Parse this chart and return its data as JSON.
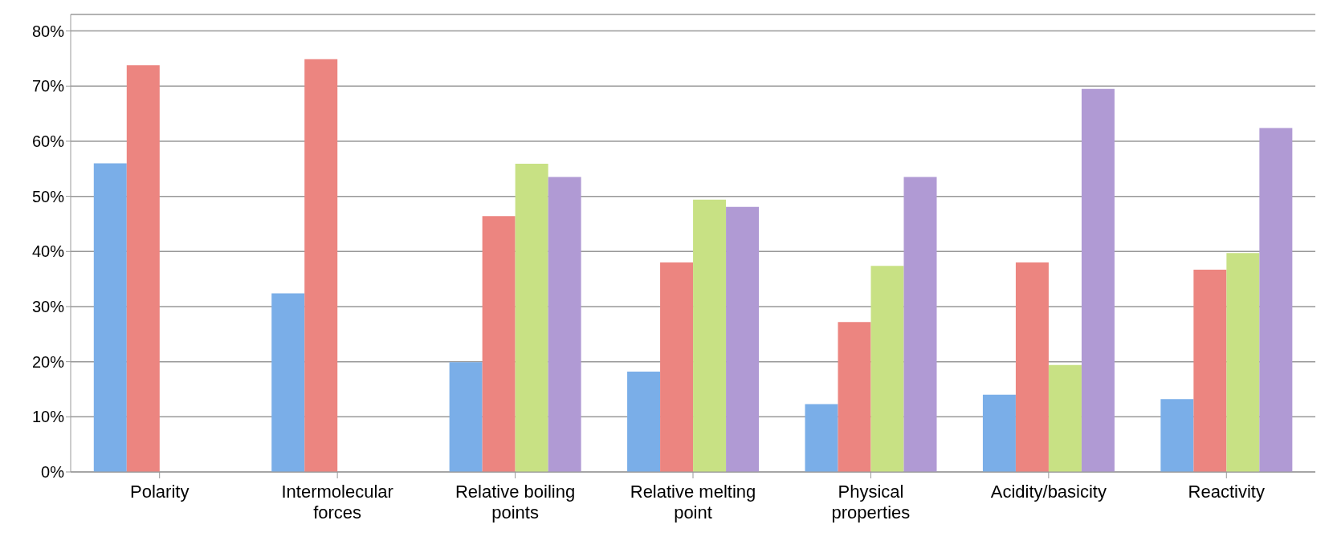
{
  "chart_data": {
    "type": "bar",
    "categories": [
      "Polarity",
      "Intermolecular forces",
      "Relative boiling points",
      "Relative melting point",
      "Physical properties",
      "Acidity/basicity",
      "Reactivity"
    ],
    "series": [
      {
        "color": "#7aaee8",
        "values": [
          56,
          32.4,
          19.9,
          18.2,
          12.3,
          14,
          13.2
        ]
      },
      {
        "color": "#ec8580",
        "values": [
          73.8,
          74.9,
          46.4,
          38,
          27.2,
          38,
          36.7
        ]
      },
      {
        "color": "#c8e184",
        "values": [
          null,
          null,
          55.9,
          49.4,
          37.4,
          19.4,
          39.7
        ]
      },
      {
        "color": "#b09ad4",
        "values": [
          null,
          null,
          53.5,
          48.1,
          53.5,
          69.5,
          62.4
        ]
      }
    ],
    "ylim": [
      0,
      83
    ],
    "yticks": [
      {
        "value": 0,
        "label": "0%"
      },
      {
        "value": 10,
        "label": "10%"
      },
      {
        "value": 20,
        "label": "20%"
      },
      {
        "value": 30,
        "label": "30%"
      },
      {
        "value": 40,
        "label": "40%"
      },
      {
        "value": 50,
        "label": "50%"
      },
      {
        "value": 60,
        "label": "60%"
      },
      {
        "value": 70,
        "label": "70%"
      },
      {
        "value": 80,
        "label": "80%"
      }
    ],
    "grid": "y",
    "legend": false
  }
}
